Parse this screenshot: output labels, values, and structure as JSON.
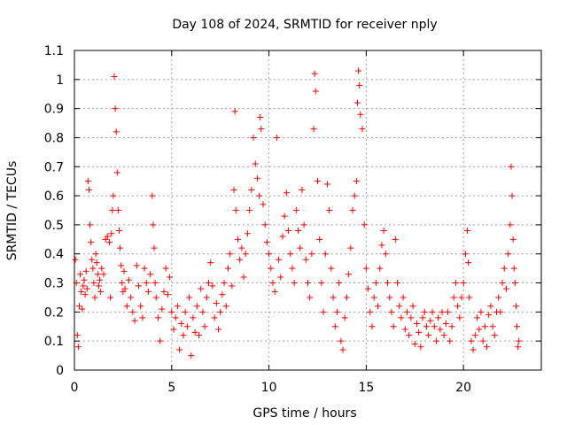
{
  "chart_data": {
    "type": "scatter",
    "title": "Day 108 of 2024, SRMTID for receiver nply",
    "xlabel": "GPS time / hours",
    "ylabel": "SRMTID / TECUs",
    "xlim": [
      0,
      24
    ],
    "ylim": [
      0,
      1.1
    ],
    "xticks": [
      0,
      5,
      10,
      15,
      20
    ],
    "xtick_labels": [
      "0",
      "5",
      "10",
      "15",
      "20"
    ],
    "yticks": [
      0,
      0.1,
      0.2,
      0.3,
      0.4,
      0.5,
      0.6,
      0.7,
      0.8,
      0.9,
      1,
      1.1
    ],
    "ytick_labels": [
      "0",
      "0.1",
      "0.2",
      "0.3",
      "0.4",
      "0.5",
      "0.6",
      "0.7",
      "0.8",
      "0.9",
      "1",
      "1.1"
    ],
    "grid": true,
    "marker": "+",
    "color": "#ff0000",
    "series": [
      {
        "name": "SRMTID",
        "points": [
          [
            0.05,
            0.38
          ],
          [
            0.1,
            0.3
          ],
          [
            0.15,
            0.12
          ],
          [
            0.2,
            0.08
          ],
          [
            0.25,
            0.22
          ],
          [
            0.3,
            0.33
          ],
          [
            0.35,
            0.27
          ],
          [
            0.4,
            0.21
          ],
          [
            0.45,
            0.29
          ],
          [
            0.5,
            0.31
          ],
          [
            0.55,
            0.26
          ],
          [
            0.6,
            0.34
          ],
          [
            0.65,
            0.28
          ],
          [
            0.7,
            0.65
          ],
          [
            0.75,
            0.62
          ],
          [
            0.8,
            0.5
          ],
          [
            0.85,
            0.44
          ],
          [
            0.9,
            0.38
          ],
          [
            0.95,
            0.35
          ],
          [
            1.0,
            0.3
          ],
          [
            1.05,
            0.25
          ],
          [
            1.1,
            0.4
          ],
          [
            1.15,
            0.37
          ],
          [
            1.2,
            0.33
          ],
          [
            1.25,
            0.29
          ],
          [
            1.3,
            0.31
          ],
          [
            1.35,
            0.27
          ],
          [
            1.4,
            0.35
          ],
          [
            1.5,
            0.33
          ],
          [
            1.6,
            0.45
          ],
          [
            1.7,
            0.46
          ],
          [
            1.8,
            0.44
          ],
          [
            1.85,
            0.25
          ],
          [
            1.9,
            0.47
          ],
          [
            1.95,
            0.55
          ],
          [
            2.0,
            0.6
          ],
          [
            2.05,
            1.01
          ],
          [
            2.1,
            0.9
          ],
          [
            2.15,
            0.82
          ],
          [
            2.2,
            0.68
          ],
          [
            2.25,
            0.55
          ],
          [
            2.3,
            0.48
          ],
          [
            2.35,
            0.42
          ],
          [
            2.4,
            0.36
          ],
          [
            2.45,
            0.3
          ],
          [
            2.5,
            0.27
          ],
          [
            2.55,
            0.34
          ],
          [
            2.6,
            0.28
          ],
          [
            2.7,
            0.22
          ],
          [
            2.8,
            0.31
          ],
          [
            2.9,
            0.25
          ],
          [
            3.0,
            0.2
          ],
          [
            3.1,
            0.17
          ],
          [
            3.2,
            0.36
          ],
          [
            3.3,
            0.29
          ],
          [
            3.4,
            0.22
          ],
          [
            3.5,
            0.18
          ],
          [
            3.6,
            0.35
          ],
          [
            3.7,
            0.3
          ],
          [
            3.8,
            0.27
          ],
          [
            3.9,
            0.33
          ],
          [
            4.0,
            0.6
          ],
          [
            4.05,
            0.5
          ],
          [
            4.1,
            0.42
          ],
          [
            4.15,
            0.3
          ],
          [
            4.2,
            0.25
          ],
          [
            4.3,
            0.18
          ],
          [
            4.4,
            0.1
          ],
          [
            4.5,
            0.21
          ],
          [
            4.6,
            0.27
          ],
          [
            4.7,
            0.35
          ],
          [
            4.8,
            0.26
          ],
          [
            4.9,
            0.32
          ],
          [
            5.0,
            0.2
          ],
          [
            5.1,
            0.14
          ],
          [
            5.2,
            0.18
          ],
          [
            5.3,
            0.22
          ],
          [
            5.4,
            0.07
          ],
          [
            5.5,
            0.16
          ],
          [
            5.6,
            0.12
          ],
          [
            5.7,
            0.2
          ],
          [
            5.8,
            0.15
          ],
          [
            5.9,
            0.25
          ],
          [
            6.0,
            0.05
          ],
          [
            6.1,
            0.18
          ],
          [
            6.2,
            0.13
          ],
          [
            6.3,
            0.22
          ],
          [
            6.4,
            0.12
          ],
          [
            6.5,
            0.28
          ],
          [
            6.6,
            0.2
          ],
          [
            6.7,
            0.15
          ],
          [
            6.8,
            0.25
          ],
          [
            6.9,
            0.3
          ],
          [
            7.0,
            0.37
          ],
          [
            7.1,
            0.29
          ],
          [
            7.2,
            0.18
          ],
          [
            7.3,
            0.23
          ],
          [
            7.4,
            0.14
          ],
          [
            7.5,
            0.2
          ],
          [
            7.6,
            0.26
          ],
          [
            7.7,
            0.3
          ],
          [
            7.8,
            0.22
          ],
          [
            7.9,
            0.35
          ],
          [
            8.0,
            0.4
          ],
          [
            8.1,
            0.29
          ],
          [
            8.2,
            0.62
          ],
          [
            8.25,
            0.89
          ],
          [
            8.3,
            0.55
          ],
          [
            8.4,
            0.45
          ],
          [
            8.5,
            0.38
          ],
          [
            8.6,
            0.42
          ],
          [
            8.7,
            0.32
          ],
          [
            8.8,
            0.4
          ],
          [
            8.9,
            0.47
          ],
          [
            9.0,
            0.55
          ],
          [
            9.1,
            0.62
          ],
          [
            9.2,
            0.8
          ],
          [
            9.3,
            0.71
          ],
          [
            9.4,
            0.66
          ],
          [
            9.5,
            0.6
          ],
          [
            9.55,
            0.87
          ],
          [
            9.6,
            0.83
          ],
          [
            9.7,
            0.57
          ],
          [
            9.8,
            0.5
          ],
          [
            9.9,
            0.44
          ],
          [
            10.0,
            0.4
          ],
          [
            10.1,
            0.35
          ],
          [
            10.2,
            0.3
          ],
          [
            10.3,
            0.27
          ],
          [
            10.4,
            0.8
          ],
          [
            10.5,
            0.38
          ],
          [
            10.6,
            0.32
          ],
          [
            10.7,
            0.46
          ],
          [
            10.8,
            0.53
          ],
          [
            10.9,
            0.61
          ],
          [
            11.0,
            0.48
          ],
          [
            11.1,
            0.4
          ],
          [
            11.2,
            0.35
          ],
          [
            11.3,
            0.3
          ],
          [
            11.4,
            0.55
          ],
          [
            11.5,
            0.48
          ],
          [
            11.6,
            0.42
          ],
          [
            11.7,
            0.62
          ],
          [
            11.8,
            0.5
          ],
          [
            11.9,
            0.38
          ],
          [
            12.0,
            0.3
          ],
          [
            12.1,
            0.25
          ],
          [
            12.2,
            0.4
          ],
          [
            12.3,
            0.83
          ],
          [
            12.35,
            1.02
          ],
          [
            12.4,
            0.96
          ],
          [
            12.5,
            0.65
          ],
          [
            12.6,
            0.45
          ],
          [
            12.7,
            0.3
          ],
          [
            12.8,
            0.2
          ],
          [
            12.9,
            0.4
          ],
          [
            13.0,
            0.64
          ],
          [
            13.1,
            0.55
          ],
          [
            13.2,
            0.35
          ],
          [
            13.3,
            0.25
          ],
          [
            13.4,
            0.15
          ],
          [
            13.5,
            0.2
          ],
          [
            13.6,
            0.3
          ],
          [
            13.7,
            0.1
          ],
          [
            13.8,
            0.07
          ],
          [
            13.9,
            0.18
          ],
          [
            14.0,
            0.25
          ],
          [
            14.1,
            0.33
          ],
          [
            14.2,
            0.42
          ],
          [
            14.3,
            0.55
          ],
          [
            14.4,
            0.6
          ],
          [
            14.5,
            0.65
          ],
          [
            14.55,
            0.92
          ],
          [
            14.6,
            1.03
          ],
          [
            14.65,
            0.98
          ],
          [
            14.7,
            0.88
          ],
          [
            14.8,
            0.83
          ],
          [
            14.9,
            0.5
          ],
          [
            15.0,
            0.35
          ],
          [
            15.1,
            0.28
          ],
          [
            15.2,
            0.2
          ],
          [
            15.3,
            0.15
          ],
          [
            15.4,
            0.25
          ],
          [
            15.5,
            0.3
          ],
          [
            15.6,
            0.22
          ],
          [
            15.7,
            0.35
          ],
          [
            15.8,
            0.43
          ],
          [
            15.9,
            0.48
          ],
          [
            16.0,
            0.4
          ],
          [
            16.1,
            0.3
          ],
          [
            16.2,
            0.25
          ],
          [
            16.3,
            0.2
          ],
          [
            16.4,
            0.15
          ],
          [
            16.5,
            0.45
          ],
          [
            16.6,
            0.3
          ],
          [
            16.7,
            0.22
          ],
          [
            16.8,
            0.18
          ],
          [
            16.9,
            0.25
          ],
          [
            17.0,
            0.14
          ],
          [
            17.1,
            0.2
          ],
          [
            17.2,
            0.12
          ],
          [
            17.3,
            0.18
          ],
          [
            17.4,
            0.22
          ],
          [
            17.5,
            0.09
          ],
          [
            17.6,
            0.16
          ],
          [
            17.7,
            0.13
          ],
          [
            17.8,
            0.08
          ],
          [
            17.9,
            0.18
          ],
          [
            18.0,
            0.2
          ],
          [
            18.1,
            0.15
          ],
          [
            18.2,
            0.12
          ],
          [
            18.3,
            0.17
          ],
          [
            18.4,
            0.2
          ],
          [
            18.5,
            0.15
          ],
          [
            18.6,
            0.1
          ],
          [
            18.7,
            0.18
          ],
          [
            18.8,
            0.14
          ],
          [
            18.9,
            0.2
          ],
          [
            19.0,
            0.12
          ],
          [
            19.1,
            0.16
          ],
          [
            19.2,
            0.2
          ],
          [
            19.3,
            0.1
          ],
          [
            19.4,
            0.15
          ],
          [
            19.5,
            0.25
          ],
          [
            19.6,
            0.3
          ],
          [
            19.7,
            0.22
          ],
          [
            19.8,
            0.18
          ],
          [
            19.9,
            0.25
          ],
          [
            20.0,
            0.3
          ],
          [
            20.1,
            0.4
          ],
          [
            20.2,
            0.48
          ],
          [
            20.25,
            0.37
          ],
          [
            20.3,
            0.25
          ],
          [
            20.4,
            0.1
          ],
          [
            20.5,
            0.07
          ],
          [
            20.6,
            0.12
          ],
          [
            20.7,
            0.18
          ],
          [
            20.8,
            0.14
          ],
          [
            20.9,
            0.2
          ],
          [
            21.0,
            0.1
          ],
          [
            21.1,
            0.15
          ],
          [
            21.2,
            0.08
          ],
          [
            21.3,
            0.19
          ],
          [
            21.4,
            0.22
          ],
          [
            21.5,
            0.15
          ],
          [
            21.6,
            0.12
          ],
          [
            21.7,
            0.2
          ],
          [
            21.8,
            0.25
          ],
          [
            21.9,
            0.2
          ],
          [
            22.0,
            0.3
          ],
          [
            22.1,
            0.35
          ],
          [
            22.2,
            0.28
          ],
          [
            22.3,
            0.4
          ],
          [
            22.4,
            0.5
          ],
          [
            22.45,
            0.7
          ],
          [
            22.5,
            0.6
          ],
          [
            22.55,
            0.45
          ],
          [
            22.6,
            0.35
          ],
          [
            22.65,
            0.3
          ],
          [
            22.7,
            0.22
          ],
          [
            22.75,
            0.15
          ],
          [
            22.8,
            0.08
          ],
          [
            22.85,
            0.1
          ]
        ]
      }
    ]
  }
}
